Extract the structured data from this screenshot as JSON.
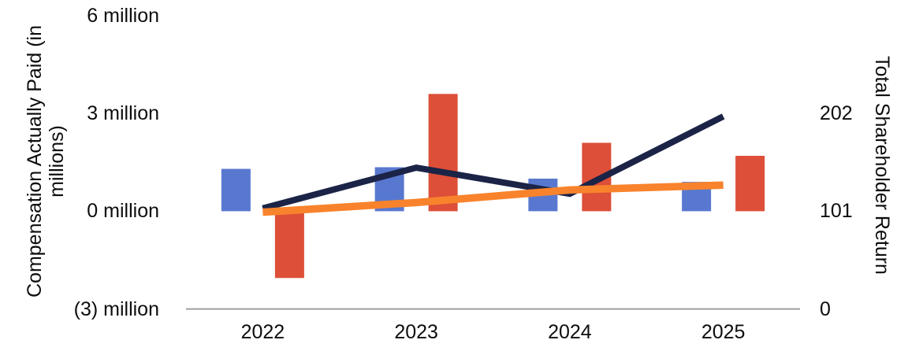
{
  "chart_data": {
    "type": "bar",
    "subtype": "combo-bar-line-dual-axis",
    "title": "",
    "legend_position": "none",
    "grid": "off",
    "background_color": "#FFFFFF",
    "axis_line_color": "#9E9E9E",
    "text_color": "#0D0D0D",
    "categories": [
      "2022",
      "2023",
      "2024",
      "2025"
    ],
    "series": [
      {
        "id": "bars-blue",
        "type": "bar",
        "axis": "left",
        "color": "#5878D0",
        "values": [
          1.3,
          1.35,
          1.0,
          0.9
        ]
      },
      {
        "id": "bars-red",
        "type": "bar",
        "axis": "left",
        "color": "#DD4F38",
        "values": [
          -2.05,
          3.6,
          2.1,
          1.7
        ]
      },
      {
        "id": "line-dark-navy",
        "type": "line",
        "axis": "right",
        "color": "#1B2447",
        "stroke_width": 8,
        "values": [
          104,
          146,
          119,
          199
        ]
      },
      {
        "id": "line-orange",
        "type": "line",
        "axis": "right",
        "color": "#F8832C",
        "stroke_width": 9.5,
        "values": [
          100,
          110,
          123,
          128
        ]
      }
    ],
    "left_axis": {
      "title": "Compensation Actually Paid (in millions)",
      "title_lines": [
        "Compensation Actually Paid (in",
        "millions)"
      ],
      "range": [
        -3,
        6
      ],
      "unit": "millions",
      "ticks": [
        {
          "label": "6 million",
          "value": 6
        },
        {
          "label": "3 million",
          "value": 3
        },
        {
          "label": "0 million",
          "value": 0
        },
        {
          "label": "(3) million",
          "value": -3
        }
      ]
    },
    "right_axis": {
      "title": "Total Shareholder Return",
      "range": [
        0,
        303
      ],
      "ticks": [
        {
          "label": "202",
          "value": 202
        },
        {
          "label": "101",
          "value": 101
        },
        {
          "label": "0",
          "value": 0
        }
      ]
    },
    "x_axis": {
      "labels": [
        "2022",
        "2023",
        "2024",
        "2025"
      ]
    }
  }
}
